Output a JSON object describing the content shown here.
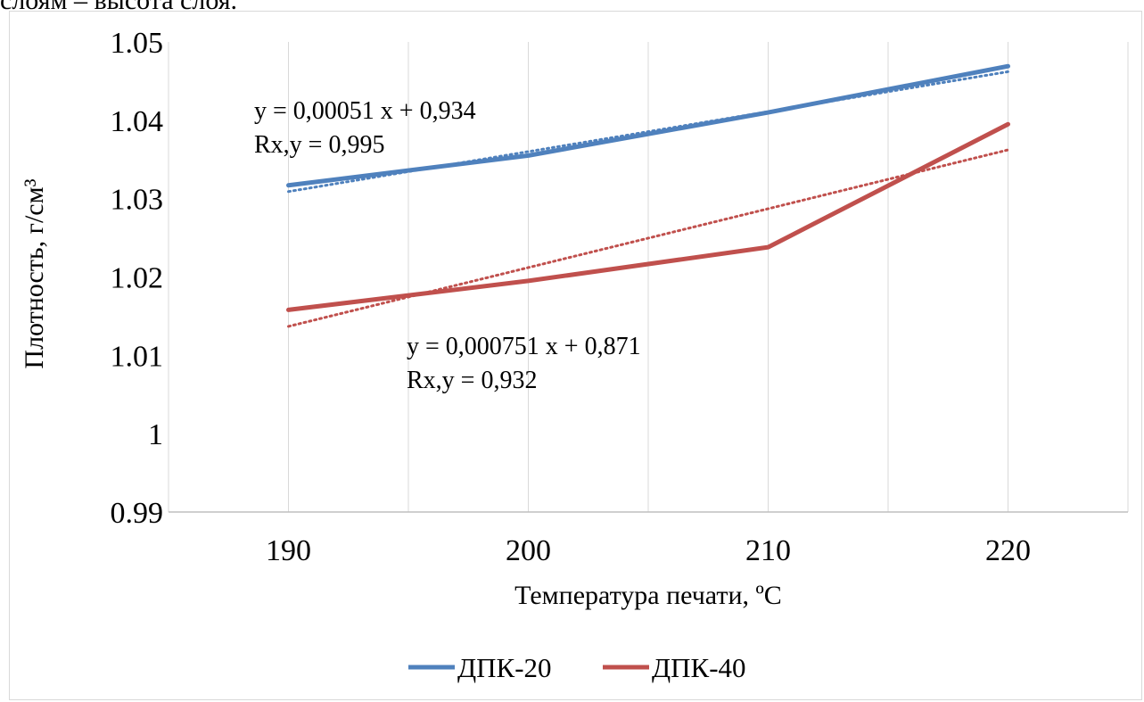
{
  "top_caption": "слоям – высота слоя.",
  "chart_data": {
    "type": "line",
    "title": "",
    "xlabel": "Температура печати, ºС",
    "ylabel": "Плотность, г/см³",
    "x": [
      190,
      200,
      210,
      220
    ],
    "x_tick_labels": [
      "190",
      "200",
      "210",
      "220"
    ],
    "xlim": [
      185,
      225
    ],
    "ylim": [
      0.99,
      1.05
    ],
    "y_tick_values": [
      0.99,
      1.0,
      1.01,
      1.02,
      1.03,
      1.04,
      1.05
    ],
    "y_tick_labels": [
      "0.99",
      "1",
      "1.01",
      "1.02",
      "1.03",
      "1.04",
      "1.05"
    ],
    "grid": "vertical",
    "legend_position": "bottom",
    "series": [
      {
        "name": "ДПК-20",
        "color": "#4f81bd",
        "values": [
          1.0317,
          1.0355,
          1.041,
          1.0469
        ],
        "trendline": {
          "style": "dotted",
          "slope": 0.00051,
          "intercept": 0.934
        },
        "annotation": [
          "y = 0,00051 x + 0,934",
          "Rx,y = 0,995"
        ]
      },
      {
        "name": "ДПК-40",
        "color": "#c0504d",
        "values": [
          1.0158,
          1.0195,
          1.0238,
          1.0395
        ],
        "trendline": {
          "style": "dotted",
          "slope": 0.000751,
          "intercept": 0.871
        },
        "annotation": [
          "y = 0,000751 x + 0,871",
          "Rx,y = 0,932"
        ]
      }
    ]
  }
}
